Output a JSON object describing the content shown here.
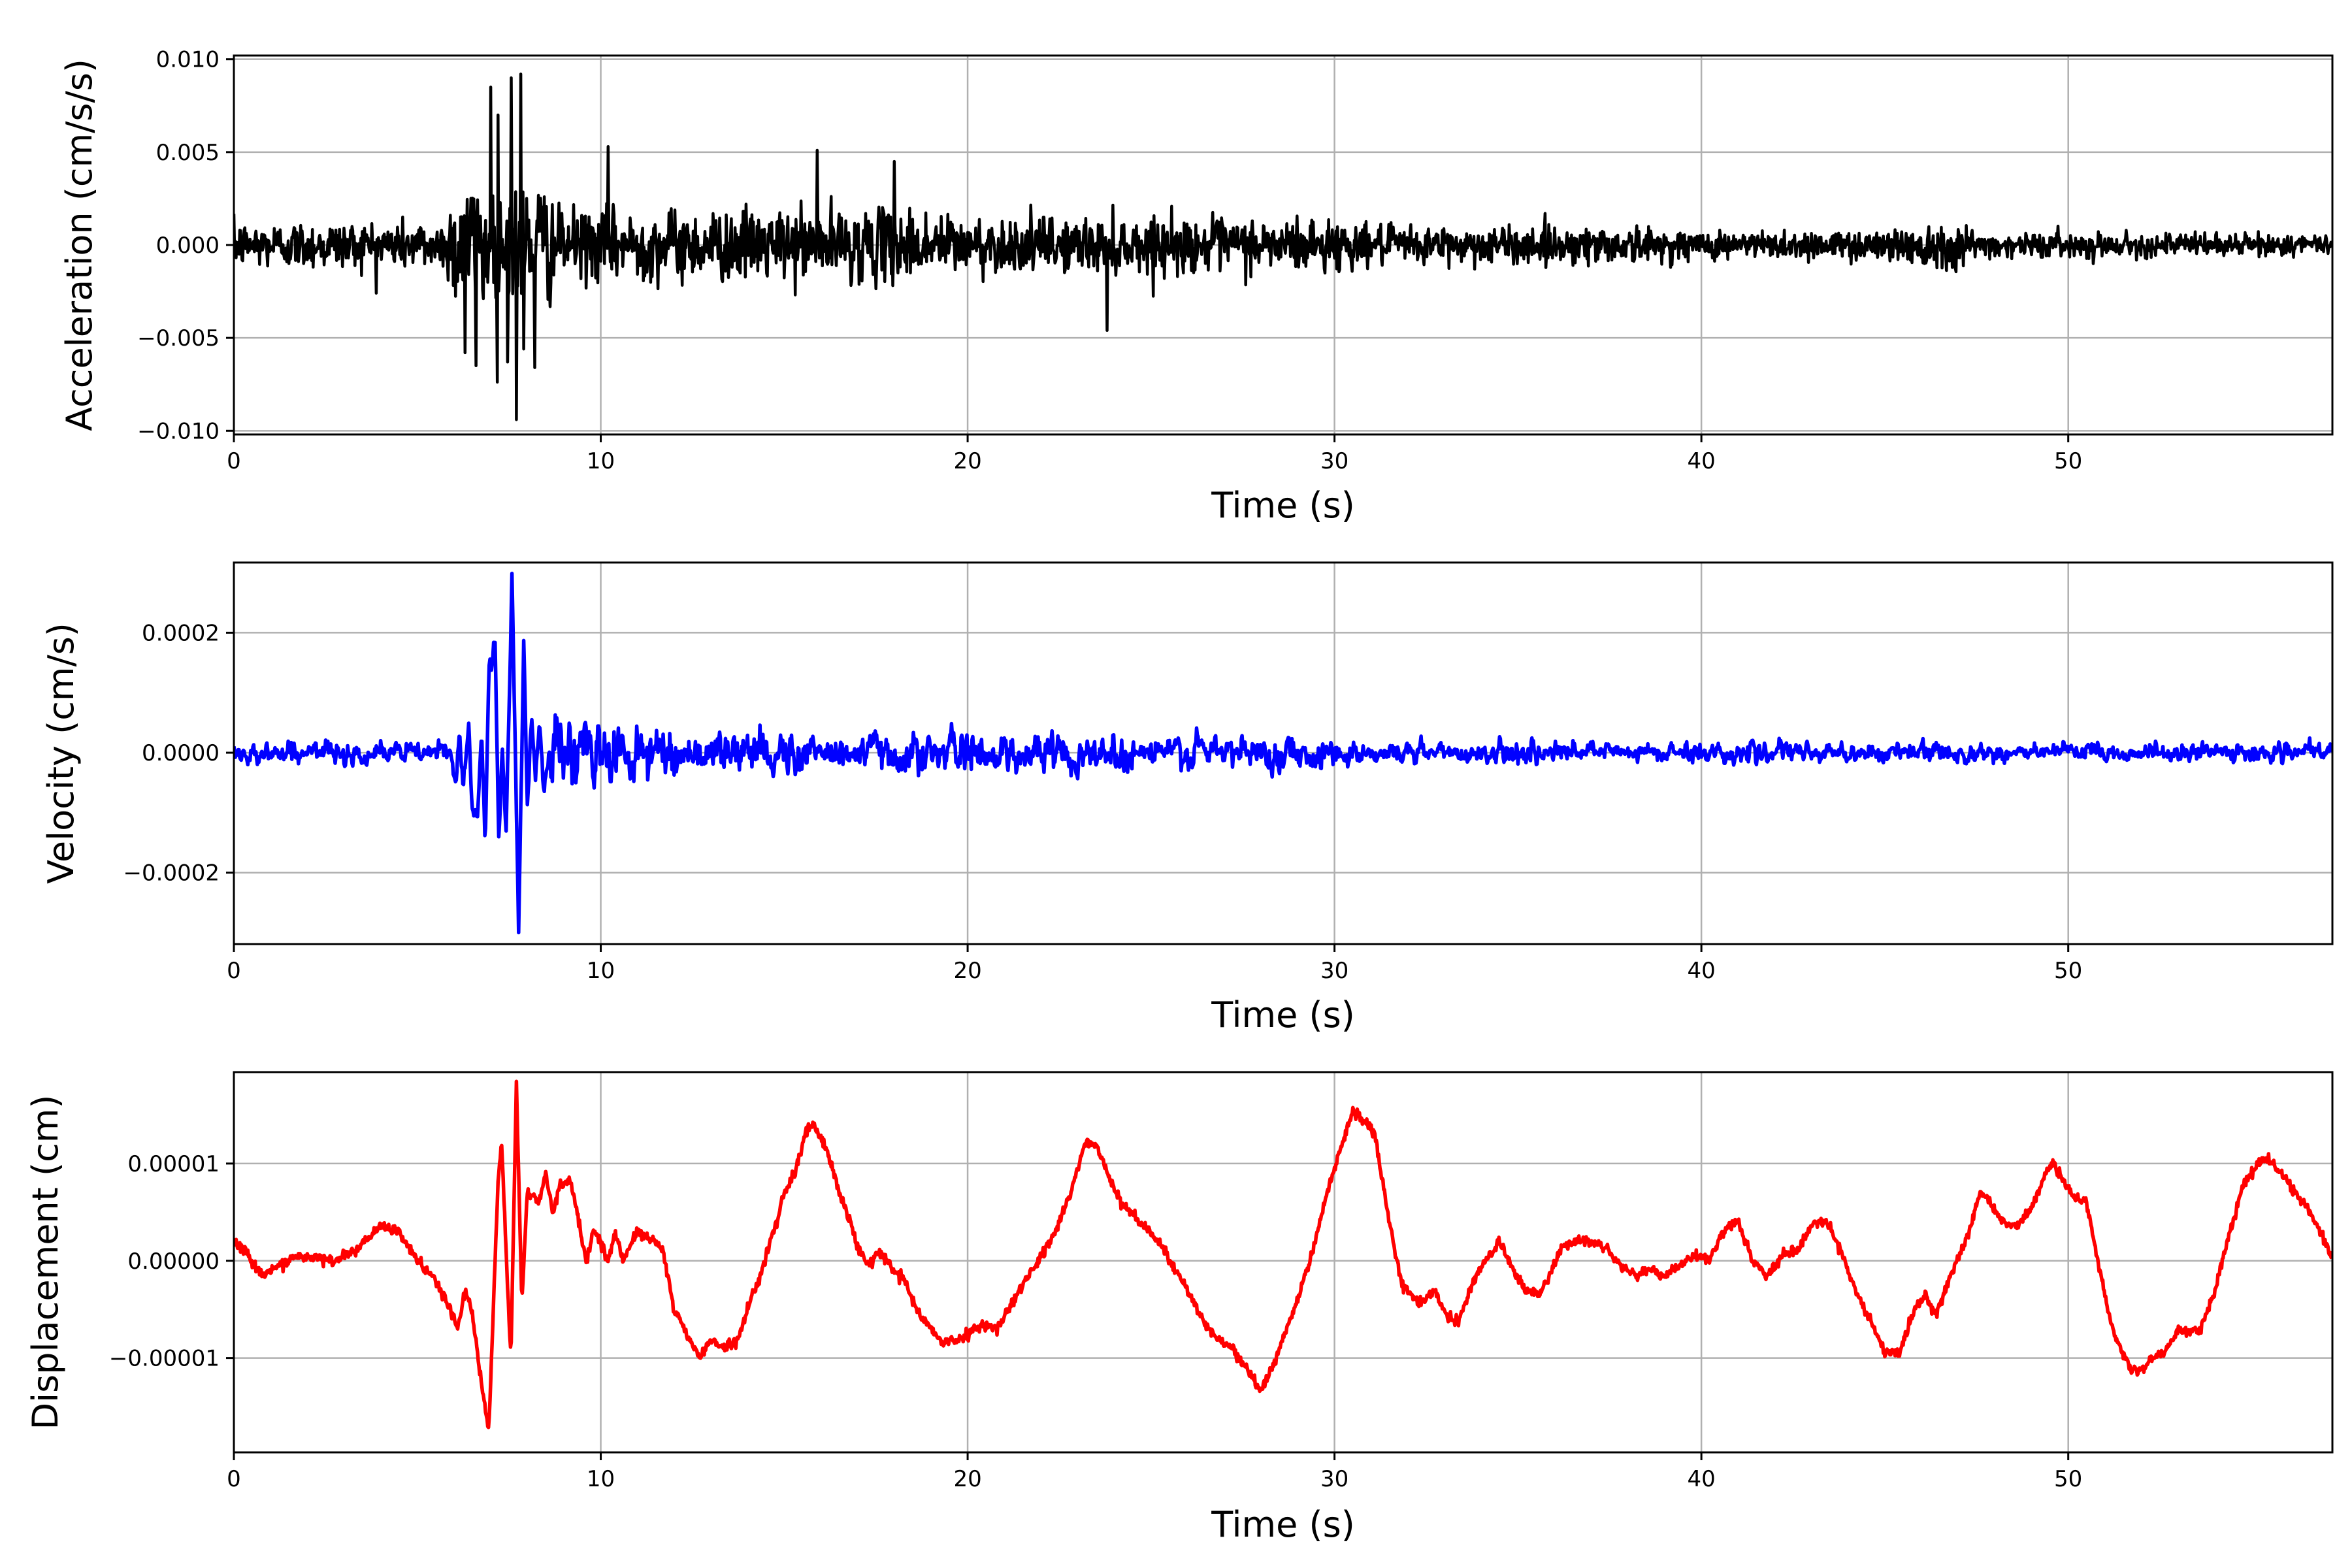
{
  "chart_data": [
    {
      "type": "line",
      "id": "acceleration",
      "xlabel": "Time (s)",
      "ylabel": "Acceleration (cm/s/s)",
      "color": "#000000",
      "xlim": [
        0,
        57.2
      ],
      "ylim": [
        -0.0102,
        0.0102
      ],
      "xticks": [
        0,
        10,
        20,
        30,
        40,
        50
      ],
      "xtick_labels": [
        "0",
        "10",
        "20",
        "30",
        "40",
        "50"
      ],
      "yticks": [
        -0.01,
        -0.005,
        0.0,
        0.005,
        0.01
      ],
      "ytick_labels": [
        "−0.010",
        "−0.005",
        "0.000",
        "0.005",
        "0.010"
      ],
      "grid": true,
      "sample_dt": 0.02,
      "noise_envelope": [
        [
          0,
          0.0011
        ],
        [
          5.8,
          0.0012
        ],
        [
          6.0,
          0.0032
        ],
        [
          8.5,
          0.0032
        ],
        [
          8.8,
          0.0017
        ],
        [
          19,
          0.0017
        ],
        [
          20,
          0.0013
        ],
        [
          30,
          0.0013
        ],
        [
          31,
          0.0009
        ],
        [
          38,
          0.0009
        ],
        [
          39,
          0.0007
        ],
        [
          45,
          0.0007
        ],
        [
          45.5,
          0.0011
        ],
        [
          47,
          0.0011
        ],
        [
          47.5,
          0.0006
        ],
        [
          57.2,
          0.0005
        ]
      ],
      "peaks": [
        [
          6.3,
          -0.0058
        ],
        [
          6.6,
          -0.0065
        ],
        [
          7.0,
          0.0085
        ],
        [
          7.2,
          0.007
        ],
        [
          7.45,
          -0.0063
        ],
        [
          7.55,
          0.009
        ],
        [
          7.7,
          -0.0094
        ],
        [
          7.82,
          0.0092
        ],
        [
          7.9,
          -0.0056
        ],
        [
          8.2,
          -0.0066
        ],
        [
          10.2,
          0.0053
        ],
        [
          15.9,
          0.0051
        ],
        [
          18.0,
          0.0045
        ],
        [
          23.8,
          -0.0046
        ]
      ]
    },
    {
      "type": "line",
      "id": "velocity",
      "xlabel": "Time (s)",
      "ylabel": "Velocity (cm/s)",
      "color": "#0000ff",
      "xlim": [
        0,
        57.2
      ],
      "ylim": [
        -0.000319,
        0.000317
      ],
      "xticks": [
        0,
        10,
        20,
        30,
        40,
        50
      ],
      "xtick_labels": [
        "0",
        "10",
        "20",
        "30",
        "40",
        "50"
      ],
      "yticks": [
        -0.0002,
        0.0,
        0.0002
      ],
      "ytick_labels": [
        "−0.0002",
        "0.0000",
        "0.0002"
      ],
      "grid": true,
      "sample_dt": 0.02,
      "noise_envelope": [
        [
          0,
          1.2e-05
        ],
        [
          5.9,
          1.2e-05
        ],
        [
          6.0,
          4e-05
        ],
        [
          8.6,
          4e-05
        ],
        [
          9,
          4e-05
        ],
        [
          12,
          2.5e-05
        ],
        [
          20,
          2.2e-05
        ],
        [
          30,
          1.8e-05
        ],
        [
          31,
          1.2e-05
        ],
        [
          57.2,
          1e-05
        ]
      ],
      "keypoints": [
        [
          5.9,
          0
        ],
        [
          6.05,
          -6e-05
        ],
        [
          6.15,
          4e-05
        ],
        [
          6.25,
          -5e-05
        ],
        [
          6.4,
          5e-05
        ],
        [
          6.5,
          -8e-05
        ],
        [
          6.65,
          -0.0001
        ],
        [
          6.75,
          3e-05
        ],
        [
          6.85,
          -0.00015
        ],
        [
          6.97,
          0.00018
        ],
        [
          7.03,
          0.00015
        ],
        [
          7.12,
          0.00019
        ],
        [
          7.22,
          -0.00015
        ],
        [
          7.32,
          1e-05
        ],
        [
          7.42,
          -0.000145
        ],
        [
          7.58,
          0.00028
        ],
        [
          7.76,
          -0.00029
        ],
        [
          7.9,
          0.00018
        ],
        [
          8.0,
          -8e-05
        ],
        [
          8.12,
          6e-05
        ],
        [
          8.22,
          -4e-05
        ],
        [
          8.33,
          5e-05
        ],
        [
          8.45,
          -5.5e-05
        ],
        [
          8.6,
          1e-05
        ]
      ]
    },
    {
      "type": "line",
      "id": "displacement",
      "xlabel": "Time (s)",
      "ylabel": "Displacement (cm)",
      "color": "#ff0000",
      "xlim": [
        0,
        57.2
      ],
      "ylim": [
        -1.97e-05,
        1.94e-05
      ],
      "xticks": [
        0,
        10,
        20,
        30,
        40,
        50
      ],
      "xtick_labels": [
        "0",
        "10",
        "20",
        "30",
        "40",
        "50"
      ],
      "yticks": [
        -1e-05,
        0.0,
        1e-05
      ],
      "ytick_labels": [
        "−0.00001",
        "0.00000",
        "0.00001"
      ],
      "grid": true,
      "value_unit_scale": 1e-05,
      "points_scaled": [
        [
          0,
          0.2
        ],
        [
          0.3,
          0.1
        ],
        [
          0.8,
          -0.15
        ],
        [
          1.2,
          -0.05
        ],
        [
          1.8,
          0.05
        ],
        [
          2.7,
          0.0
        ],
        [
          3.3,
          0.1
        ],
        [
          4.0,
          0.35
        ],
        [
          4.5,
          0.3
        ],
        [
          5.0,
          0.0
        ],
        [
          5.5,
          -0.2
        ],
        [
          5.9,
          -0.5
        ],
        [
          6.1,
          -0.7
        ],
        [
          6.3,
          -0.3
        ],
        [
          6.5,
          -0.55
        ],
        [
          6.8,
          -1.4
        ],
        [
          6.95,
          -1.75
        ],
        [
          7.1,
          -0.2
        ],
        [
          7.2,
          0.8
        ],
        [
          7.3,
          1.25
        ],
        [
          7.45,
          -0.2
        ],
        [
          7.55,
          -1.0
        ],
        [
          7.7,
          1.8
        ],
        [
          7.85,
          -0.4
        ],
        [
          8.0,
          0.7
        ],
        [
          8.3,
          0.6
        ],
        [
          8.5,
          0.9
        ],
        [
          8.7,
          0.5
        ],
        [
          8.9,
          0.8
        ],
        [
          9.2,
          0.8
        ],
        [
          9.4,
          0.4
        ],
        [
          9.6,
          0.0
        ],
        [
          9.8,
          0.3
        ],
        [
          10.0,
          0.2
        ],
        [
          10.2,
          0.0
        ],
        [
          10.4,
          0.3
        ],
        [
          10.6,
          0.0
        ],
        [
          11.0,
          0.3
        ],
        [
          11.5,
          0.2
        ],
        [
          11.7,
          0.1
        ],
        [
          12.0,
          -0.5
        ],
        [
          12.4,
          -0.8
        ],
        [
          12.7,
          -1.0
        ],
        [
          13.0,
          -0.8
        ],
        [
          13.3,
          -0.9
        ],
        [
          13.7,
          -0.85
        ],
        [
          14.0,
          -0.5
        ],
        [
          14.3,
          -0.2
        ],
        [
          14.6,
          0.2
        ],
        [
          14.8,
          0.4
        ],
        [
          15.0,
          0.7
        ],
        [
          15.3,
          0.9
        ],
        [
          15.6,
          1.35
        ],
        [
          15.8,
          1.4
        ],
        [
          16.2,
          1.1
        ],
        [
          16.5,
          0.7
        ],
        [
          16.8,
          0.4
        ],
        [
          17.0,
          0.15
        ],
        [
          17.3,
          -0.05
        ],
        [
          17.6,
          0.1
        ],
        [
          18.0,
          -0.1
        ],
        [
          18.3,
          -0.2
        ],
        [
          18.6,
          -0.5
        ],
        [
          19.0,
          -0.7
        ],
        [
          19.3,
          -0.85
        ],
        [
          19.8,
          -0.8
        ],
        [
          20.4,
          -0.65
        ],
        [
          20.8,
          -0.7
        ],
        [
          21.1,
          -0.5
        ],
        [
          21.5,
          -0.25
        ],
        [
          22.0,
          0.05
        ],
        [
          22.4,
          0.3
        ],
        [
          22.8,
          0.7
        ],
        [
          23.2,
          1.2
        ],
        [
          23.5,
          1.2
        ],
        [
          23.8,
          0.9
        ],
        [
          24.2,
          0.6
        ],
        [
          24.7,
          0.4
        ],
        [
          25.2,
          0.2
        ],
        [
          25.6,
          -0.05
        ],
        [
          26.0,
          -0.3
        ],
        [
          26.4,
          -0.6
        ],
        [
          26.8,
          -0.8
        ],
        [
          27.2,
          -0.9
        ],
        [
          27.6,
          -1.1
        ],
        [
          28.0,
          -1.35
        ],
        [
          28.3,
          -1.1
        ],
        [
          28.6,
          -0.8
        ],
        [
          29.0,
          -0.4
        ],
        [
          29.4,
          0.1
        ],
        [
          29.8,
          0.7
        ],
        [
          30.2,
          1.2
        ],
        [
          30.5,
          1.55
        ],
        [
          30.8,
          1.45
        ],
        [
          31.1,
          1.3
        ],
        [
          31.4,
          0.6
        ],
        [
          31.8,
          -0.2
        ],
        [
          32.3,
          -0.45
        ],
        [
          32.7,
          -0.3
        ],
        [
          33.1,
          -0.6
        ],
        [
          33.4,
          -0.6
        ],
        [
          33.8,
          -0.2
        ],
        [
          34.2,
          0.05
        ],
        [
          34.5,
          0.2
        ],
        [
          34.8,
          -0.05
        ],
        [
          35.2,
          -0.3
        ],
        [
          35.6,
          -0.35
        ],
        [
          35.8,
          -0.2
        ],
        [
          36.2,
          0.15
        ],
        [
          36.6,
          0.2
        ],
        [
          37.0,
          0.2
        ],
        [
          37.4,
          0.15
        ],
        [
          37.8,
          -0.05
        ],
        [
          38.2,
          -0.15
        ],
        [
          38.6,
          -0.1
        ],
        [
          39.0,
          -0.15
        ],
        [
          39.4,
          -0.05
        ],
        [
          39.8,
          0.05
        ],
        [
          40.2,
          0.0
        ],
        [
          40.6,
          0.3
        ],
        [
          41.0,
          0.4
        ],
        [
          41.4,
          0.0
        ],
        [
          41.8,
          -0.15
        ],
        [
          42.2,
          0.05
        ],
        [
          42.6,
          0.1
        ],
        [
          43.0,
          0.35
        ],
        [
          43.4,
          0.4
        ],
        [
          43.8,
          0.1
        ],
        [
          44.2,
          -0.3
        ],
        [
          44.6,
          -0.6
        ],
        [
          45.0,
          -0.95
        ],
        [
          45.4,
          -0.95
        ],
        [
          45.8,
          -0.5
        ],
        [
          46.1,
          -0.35
        ],
        [
          46.4,
          -0.55
        ],
        [
          46.8,
          -0.15
        ],
        [
          47.2,
          0.2
        ],
        [
          47.6,
          0.7
        ],
        [
          47.8,
          0.65
        ],
        [
          48.2,
          0.4
        ],
        [
          48.6,
          0.35
        ],
        [
          49.0,
          0.55
        ],
        [
          49.4,
          0.9
        ],
        [
          49.6,
          1.0
        ],
        [
          49.9,
          0.8
        ],
        [
          50.2,
          0.65
        ],
        [
          50.5,
          0.6
        ],
        [
          50.8,
          0.0
        ],
        [
          51.2,
          -0.7
        ],
        [
          51.6,
          -1.05
        ],
        [
          51.9,
          -1.15
        ],
        [
          52.3,
          -1.0
        ],
        [
          52.6,
          -0.95
        ],
        [
          53.0,
          -0.7
        ],
        [
          53.3,
          -0.75
        ],
        [
          53.6,
          -0.7
        ],
        [
          54.0,
          -0.3
        ],
        [
          54.4,
          0.3
        ],
        [
          54.8,
          0.8
        ],
        [
          55.3,
          1.05
        ],
        [
          55.6,
          1.0
        ],
        [
          56.0,
          0.8
        ],
        [
          56.5,
          0.55
        ],
        [
          57.2,
          0.05
        ]
      ]
    }
  ]
}
